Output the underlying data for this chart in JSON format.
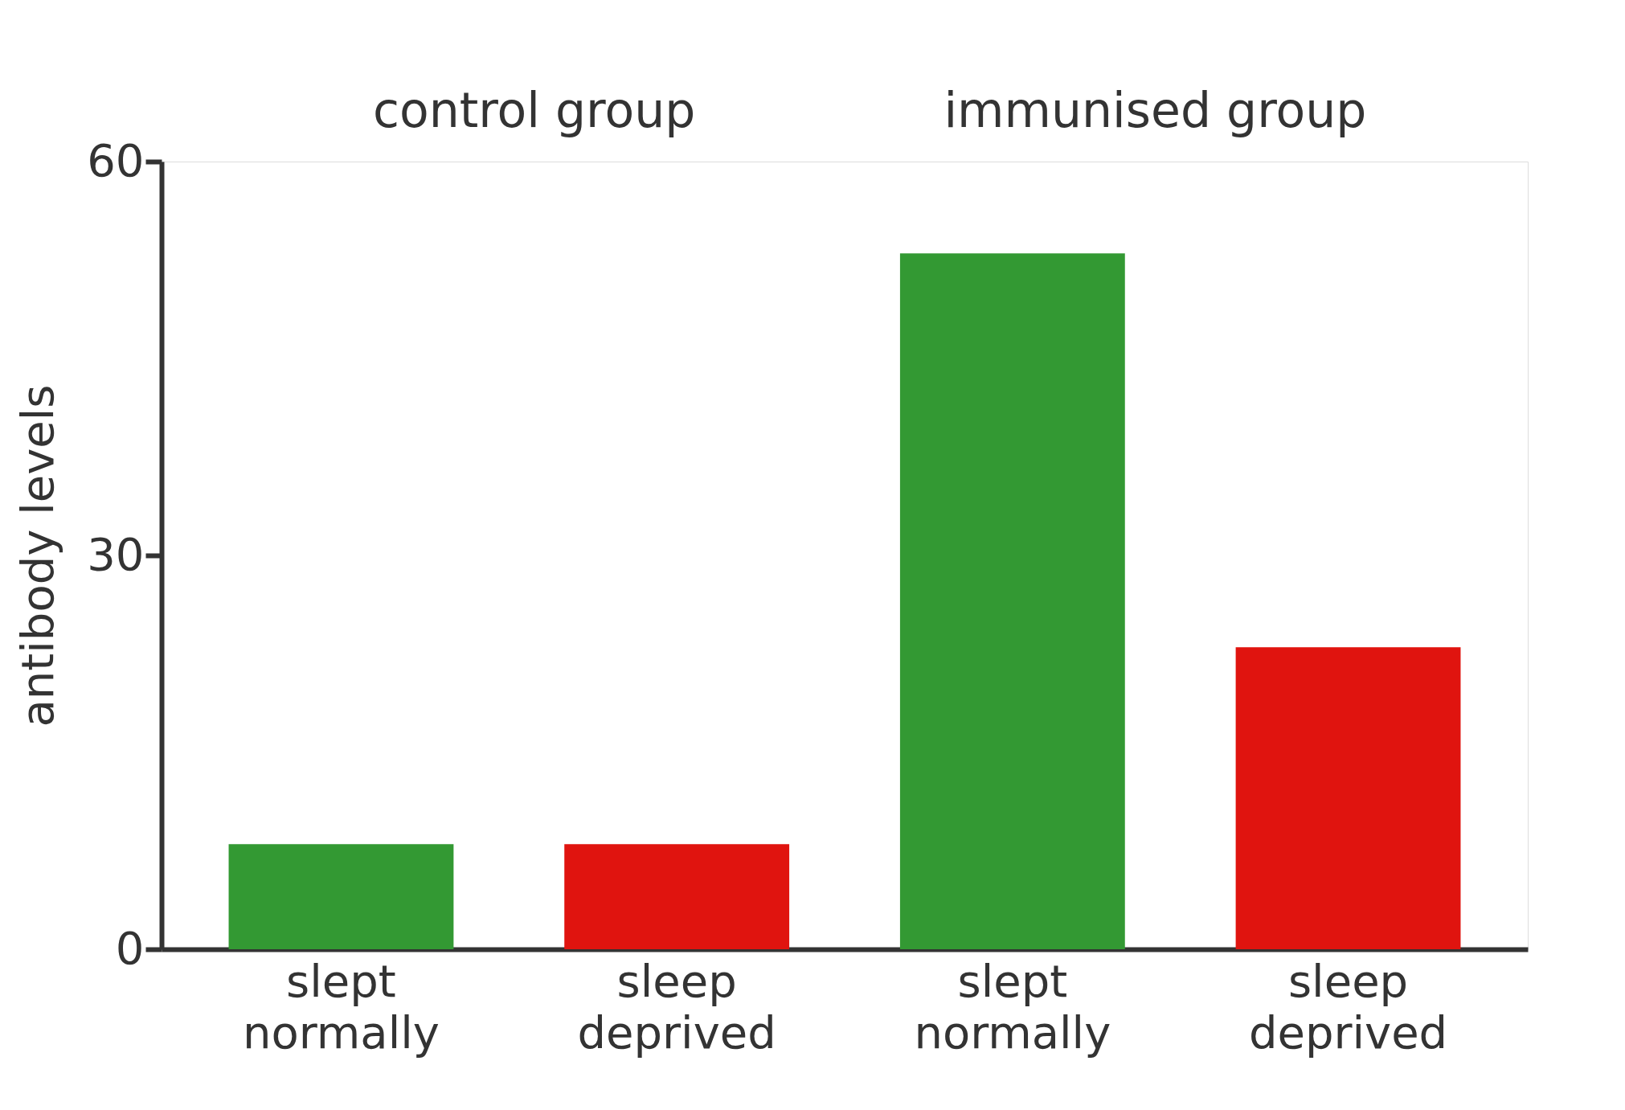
{
  "chart_data": {
    "type": "bar",
    "ylabel": "antibody levels",
    "categories": [
      "slept normally",
      "sleep deprived",
      "slept normally",
      "sleep deprived"
    ],
    "values": [
      8,
      8,
      53,
      23
    ],
    "colors": [
      "#339933",
      "#e0140f",
      "#339933",
      "#e0140f"
    ],
    "ylim": [
      0,
      60
    ],
    "yticks": [
      0,
      30,
      60
    ],
    "grid": false,
    "annotations": [
      "control group",
      "immunised group"
    ]
  }
}
